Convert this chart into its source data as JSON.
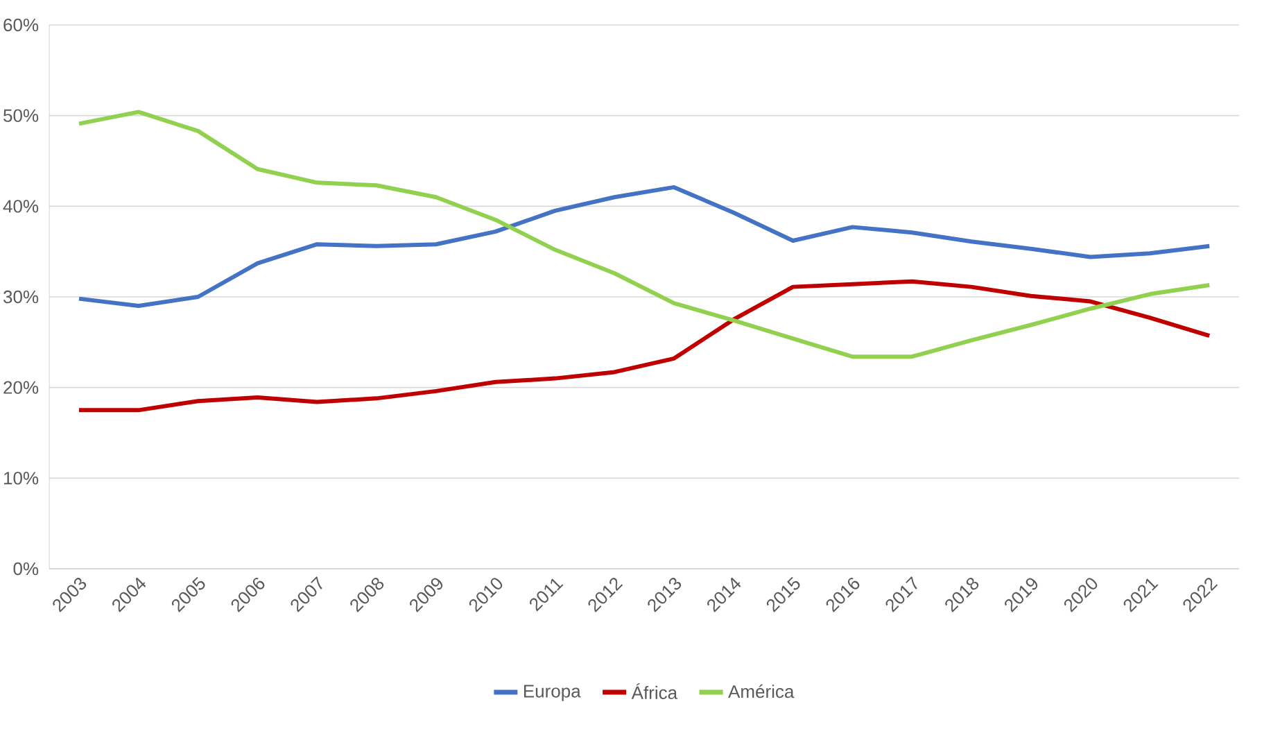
{
  "chart_data": {
    "type": "line",
    "categories": [
      "2003",
      "2004",
      "2005",
      "2006",
      "2007",
      "2008",
      "2009",
      "2010",
      "2011",
      "2012",
      "2013",
      "2014",
      "2015",
      "2016",
      "2017",
      "2018",
      "2019",
      "2020",
      "2021",
      "2022"
    ],
    "series": [
      {
        "name": "Europa",
        "color": "#4472c4",
        "values": [
          29.8,
          29.0,
          30.0,
          33.7,
          35.8,
          35.6,
          35.8,
          37.2,
          39.5,
          41.0,
          42.1,
          39.3,
          36.2,
          37.7,
          37.1,
          36.1,
          35.3,
          34.4,
          34.8,
          35.6
        ]
      },
      {
        "name": "África",
        "color": "#c00000",
        "values": [
          17.5,
          17.5,
          18.5,
          18.9,
          18.4,
          18.8,
          19.6,
          20.6,
          21.0,
          21.7,
          23.2,
          27.5,
          31.1,
          31.4,
          31.7,
          31.1,
          30.1,
          29.5,
          27.7,
          25.7
        ]
      },
      {
        "name": "América",
        "color": "#92d050",
        "values": [
          49.1,
          50.4,
          48.3,
          44.1,
          42.6,
          42.3,
          41.0,
          38.5,
          35.2,
          32.6,
          29.3,
          27.4,
          25.4,
          23.4,
          23.4,
          25.2,
          26.9,
          28.7,
          30.3,
          31.3
        ]
      }
    ],
    "ylim": [
      0,
      60
    ],
    "yticks": [
      {
        "value": 0,
        "label": "0%"
      },
      {
        "value": 10,
        "label": "10%"
      },
      {
        "value": 20,
        "label": "20%"
      },
      {
        "value": 30,
        "label": "30%"
      },
      {
        "value": 40,
        "label": "40%"
      },
      {
        "value": 50,
        "label": "50%"
      },
      {
        "value": 60,
        "label": "60%"
      }
    ],
    "grid": "y",
    "legend": "bottom",
    "marker": "none",
    "line_style": "solid"
  }
}
